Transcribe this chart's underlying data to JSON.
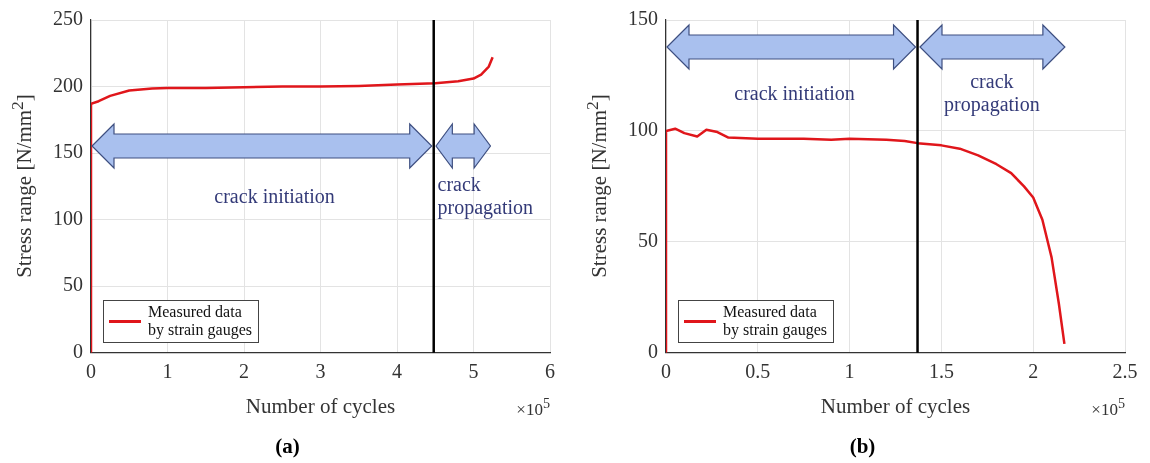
{
  "chart_data": [
    {
      "type": "line",
      "title": "(a)",
      "xlabel": "Number of cycles",
      "ylabel": "Stress range [N/mm$^{2}$]",
      "annotations": [
        "crack initiation",
        "crack propagation",
        "×10$^{5}$"
      ],
      "xlim": [
        0,
        6
      ],
      "xticks": [
        0,
        1,
        2,
        3,
        4,
        5,
        6
      ],
      "ylim": [
        0,
        250
      ],
      "yticks": [
        0,
        50,
        100,
        150,
        200,
        250
      ],
      "grid": true,
      "legend": "bottom left",
      "marker": "none",
      "line_style": "solid",
      "ref_lines": [
        {
          "axis": "x",
          "value": 4.48,
          "color": "#000000"
        }
      ],
      "series": [
        {
          "name": "Measured data by strain gauges",
          "color": "#e0161b",
          "x": [
            0,
            0,
            0.1,
            0.25,
            0.5,
            0.8,
            1,
            1.5,
            2,
            2.5,
            3,
            3.5,
            4,
            4.5,
            4.8,
            5,
            5.1,
            5.2,
            5.25
          ],
          "values": [
            0,
            187,
            189,
            193,
            197,
            198.5,
            199,
            199,
            199.5,
            200,
            200,
            200.5,
            201.5,
            202.5,
            204,
            206,
            209,
            215,
            222
          ]
        }
      ]
    },
    {
      "type": "line",
      "title": "(b)",
      "xlabel": "Number of cycles",
      "ylabel": "Stress range [N/mm$^{2}$]",
      "annotations": [
        "crack initiation",
        "crack propagation",
        "×10$^{5}$"
      ],
      "xlim": [
        0,
        2.5
      ],
      "xticks": [
        0,
        0.5,
        1,
        1.5,
        2,
        2.5
      ],
      "ylim": [
        0,
        150
      ],
      "yticks": [
        0,
        50,
        100,
        150
      ],
      "grid": true,
      "legend": "bottom left",
      "marker": "none",
      "line_style": "solid",
      "ref_lines": [
        {
          "axis": "x",
          "value": 1.37,
          "color": "#000000"
        }
      ],
      "series": [
        {
          "name": "Measured data by strain gauges",
          "color": "#e0161b",
          "x": [
            0,
            0,
            0.05,
            0.1,
            0.17,
            0.22,
            0.28,
            0.34,
            0.5,
            0.75,
            0.9,
            1,
            1.2,
            1.3,
            1.37,
            1.5,
            1.6,
            1.7,
            1.8,
            1.88,
            1.95,
            2,
            2.05,
            2.1,
            2.14,
            2.17
          ],
          "values": [
            0,
            100,
            101,
            99,
            97.5,
            100.5,
            99.5,
            97,
            96.5,
            96.5,
            96,
            96.5,
            96,
            95.5,
            94.5,
            93.5,
            92,
            89,
            85,
            81,
            75,
            70,
            60,
            43,
            22,
            4
          ]
        }
      ]
    }
  ]
}
